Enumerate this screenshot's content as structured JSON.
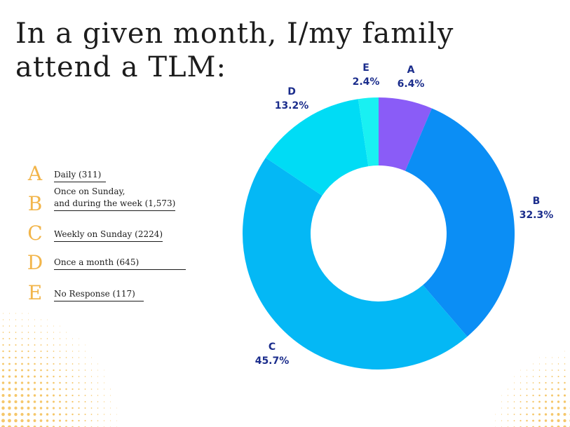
{
  "title_lines": [
    "In a given month, I/my family",
    "attend a TLM:"
  ],
  "colors": {
    "letter": "#f2b54a",
    "label": "#1b2d8c",
    "dots": "#f5c76a"
  },
  "legend": [
    {
      "letter": "A",
      "lines": [
        "Daily (311)"
      ]
    },
    {
      "letter": "B",
      "lines": [
        "Once on Sunday,",
        "and during the week (1,573)"
      ]
    },
    {
      "letter": "C",
      "lines": [
        "Weekly on Sunday (2224)"
      ]
    },
    {
      "letter": "D",
      "lines": [
        "Once a month (645)"
      ]
    },
    {
      "letter": "E",
      "lines": [
        "No Response (117)"
      ]
    }
  ],
  "chart_data": {
    "type": "pie",
    "donut": true,
    "title": "In a given month, I/my family attend a TLM:",
    "categories": [
      "A",
      "B",
      "C",
      "D",
      "E"
    ],
    "values": [
      6.4,
      32.3,
      45.7,
      13.2,
      2.4
    ],
    "labels": [
      "6.4%",
      "32.3%",
      "45.7%",
      "13.2%",
      "2.4%"
    ],
    "colors": [
      "#8a5cf7",
      "#0b8ef5",
      "#04b8f5",
      "#00dcf5",
      "#19f0f2"
    ],
    "start_angle_deg": 0,
    "direction": "clockwise"
  }
}
